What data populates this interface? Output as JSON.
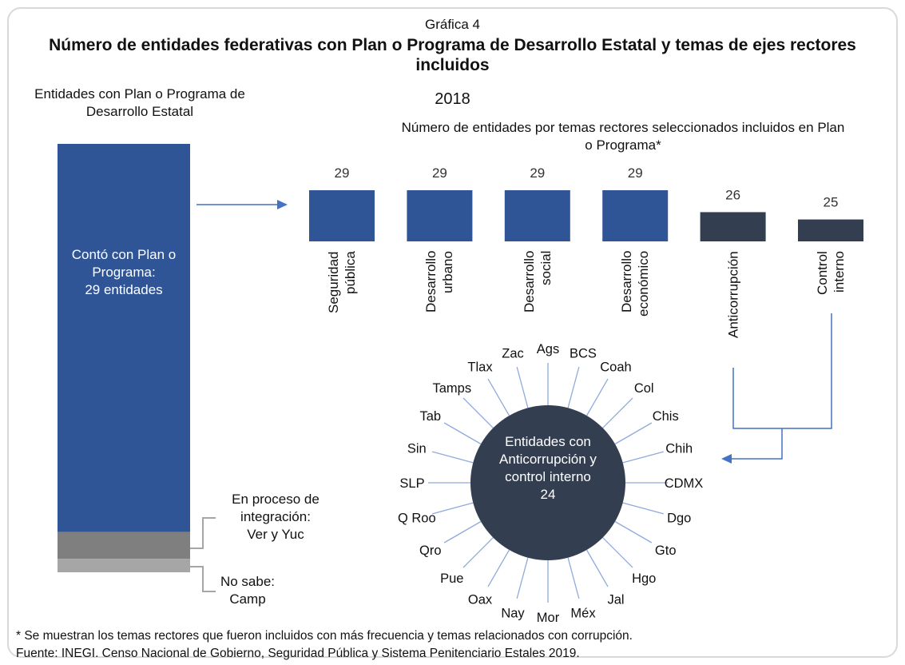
{
  "header": {
    "caption": "Gráfica 4",
    "title": "Número de entidades federativas con Plan o Programa de Desarrollo Estatal y temas de ejes rectores incluidos",
    "year": "2018"
  },
  "chart_data": [
    {
      "type": "stacked-bar",
      "title": "Entidades con Plan o Programa de Desarrollo Estatal",
      "segments": [
        {
          "label": "Contó con Plan o\nPrograma:\n29 entidades",
          "value": 29,
          "color": "#2f5597"
        },
        {
          "label": "En proceso de\nintegración:\nVer y Yuc",
          "value": 2,
          "color": "#7f7f7f"
        },
        {
          "label": "No sabe:\nCamp",
          "value": 1,
          "color": "#a6a6a6"
        }
      ]
    },
    {
      "type": "bar",
      "title": "Número de entidades por temas rectores seleccionados incluidos en Plan o Programa*",
      "categories": [
        "Seguridad\npública",
        "Desarrollo\nurbano",
        "Desarrollo\nsocial",
        "Desarrollo\neconómico",
        "Anticorrupción",
        "Control\ninterno"
      ],
      "values": [
        29,
        29,
        29,
        29,
        26,
        25
      ],
      "colors": [
        "#2f5597",
        "#2f5597",
        "#2f5597",
        "#2f5597",
        "#333f50",
        "#333f50"
      ],
      "ylim": [
        22,
        29
      ]
    },
    {
      "type": "radial",
      "center_label": "Entidades con\nAnticorrupción y\ncontrol interno",
      "center_value": 24,
      "color": "#333f50",
      "labels": [
        "Ags",
        "BCS",
        "Coah",
        "Col",
        "Chis",
        "Chih",
        "CDMX",
        "Dgo",
        "Gto",
        "Hgo",
        "Jal",
        "Méx",
        "Mor",
        "Nay",
        "Oax",
        "Pue",
        "Qro",
        "Q Roo",
        "SLP",
        "Sin",
        "Tab",
        "Tamps",
        "Tlax",
        "Zac"
      ]
    }
  ],
  "footnotes": [
    "* Se muestran los temas rectores que fueron incluidos con más frecuencia y temas relacionados con corrupción.",
    "Fuente: INEGI. Censo Nacional de Gobierno, Seguridad Pública y Sistema Penitenciario Estales 2019."
  ]
}
